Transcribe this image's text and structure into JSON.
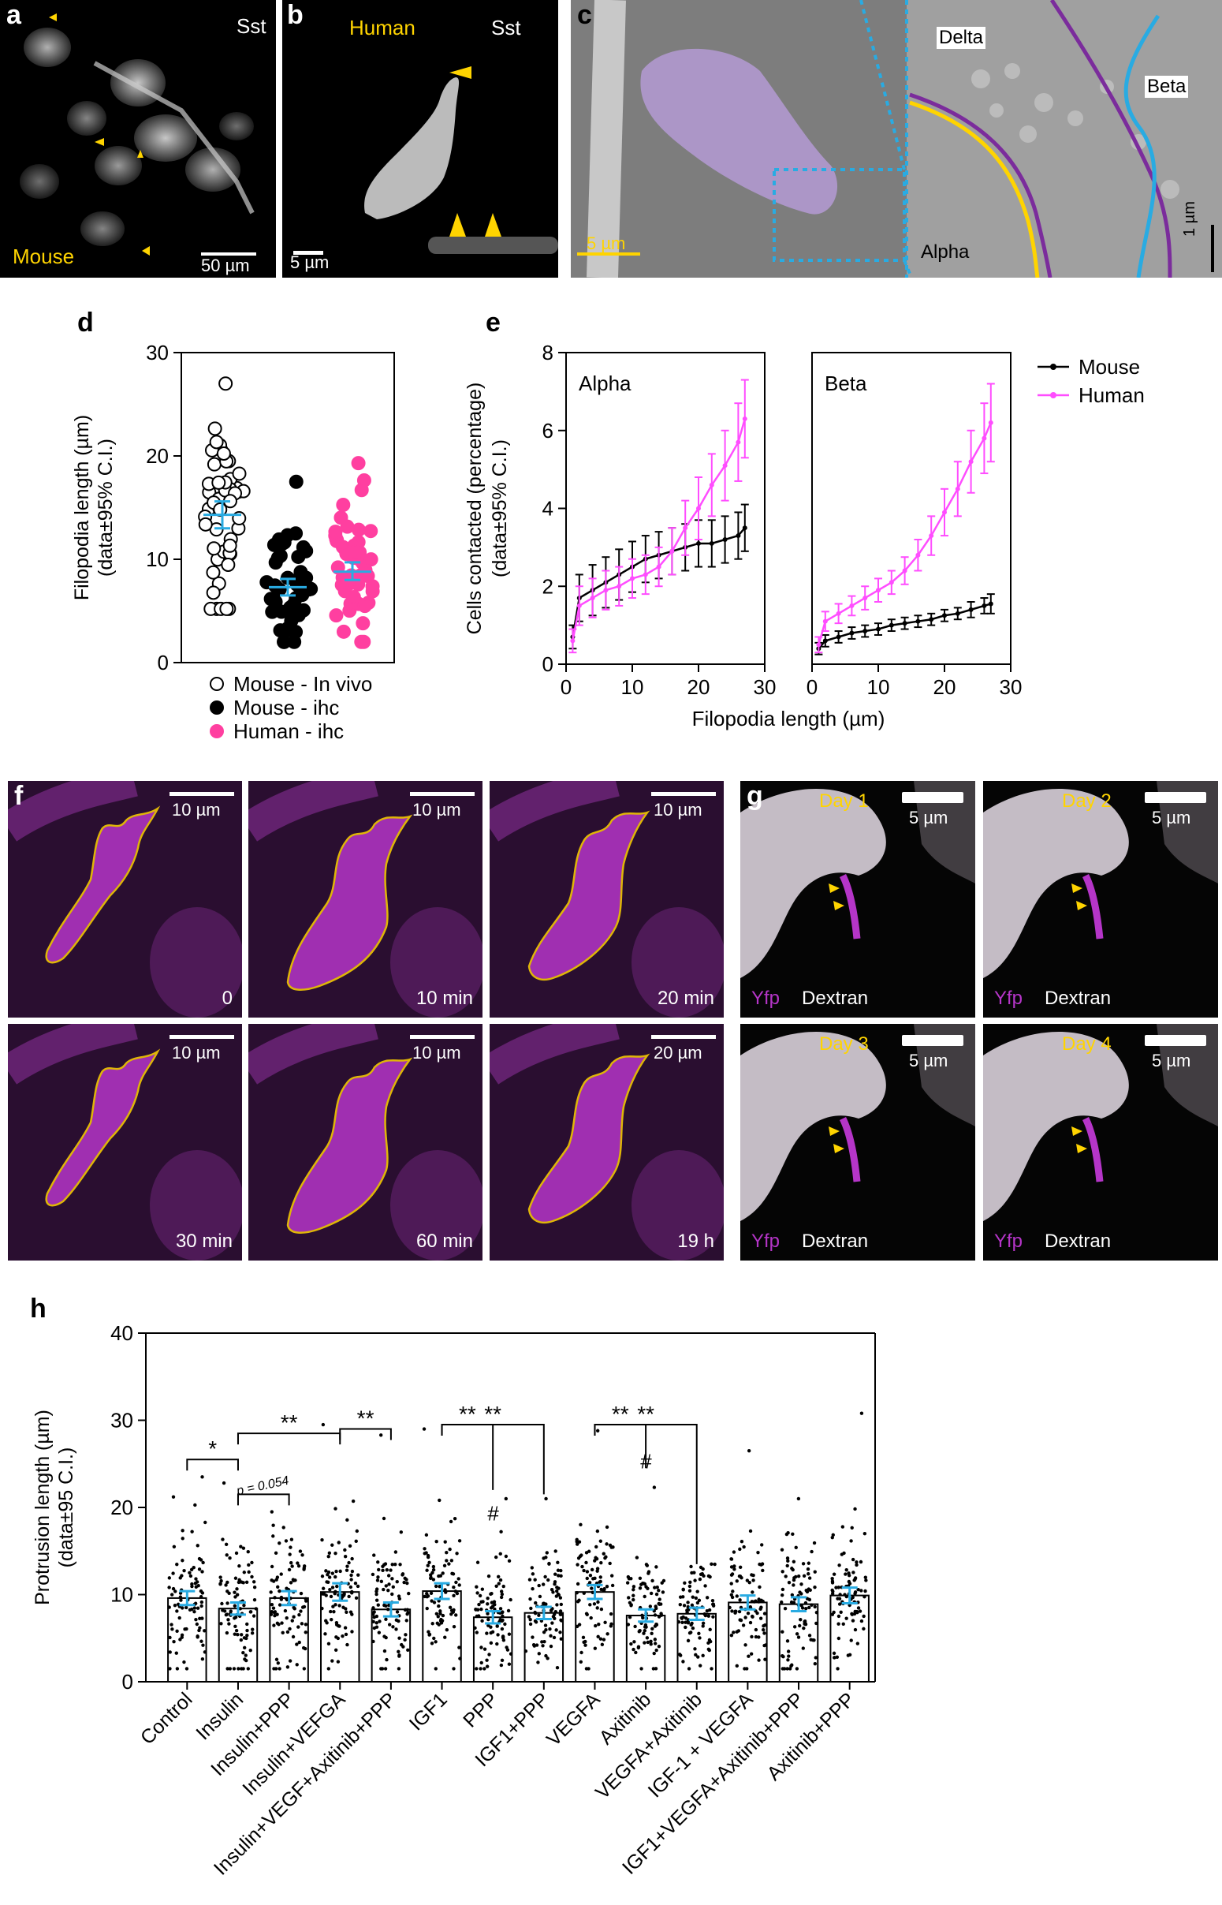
{
  "figure": {
    "panels": {
      "a": {
        "label": "a",
        "marker": "Sst",
        "species": "Mouse",
        "scalebar": "50 µm"
      },
      "b": {
        "label": "b",
        "marker": "Sst",
        "species": "Human",
        "scalebar": "5 µm"
      },
      "c": {
        "label": "c",
        "scalebar_left": "5 µm",
        "scalebar_right": "1 µm",
        "cells": [
          "Delta",
          "Beta",
          "Alpha"
        ]
      },
      "f": {
        "label": "f",
        "frames": [
          {
            "time": "0",
            "scalebar": "10 µm"
          },
          {
            "time": "10 min",
            "scalebar": "10 µm"
          },
          {
            "time": "20 min",
            "scalebar": "10 µm"
          },
          {
            "time": "30 min",
            "scalebar": "10 µm"
          },
          {
            "time": "60 min",
            "scalebar": "10 µm"
          },
          {
            "time": "19 h",
            "scalebar": "20 µm"
          }
        ]
      },
      "g": {
        "label": "g",
        "channel_1": "Yfp",
        "channel_2": "Dextran",
        "frames": [
          {
            "day": "Day 1",
            "scalebar": "5 µm"
          },
          {
            "day": "Day 2",
            "scalebar": "5 µm"
          },
          {
            "day": "Day 3",
            "scalebar": "5 µm"
          },
          {
            "day": "Day 4",
            "scalebar": "5 µm"
          }
        ]
      },
      "d": {
        "label": "d"
      },
      "e": {
        "label": "e"
      },
      "h": {
        "label": "h"
      }
    },
    "colors": {
      "human": "#ff3fa0",
      "human_line": "#ff4dff",
      "mouse": "#000000",
      "ci": "#29abe2",
      "yellow": "#ffd400",
      "magenta": "#b535c8"
    }
  },
  "chart_data": [
    {
      "id": "d",
      "type": "scatter",
      "ylabel_line1": "Filopodia length (µm)",
      "ylabel_line2": "(data±95% C.I.)",
      "ylim": [
        0,
        30
      ],
      "yticks": [
        "0",
        "10",
        "20",
        "30"
      ],
      "groups": [
        {
          "name": "Mouse - In vivo",
          "marker": "open-circle",
          "mean": 14.3,
          "ci": [
            13.0,
            15.6
          ],
          "min": 5.2,
          "max": 27.0
        },
        {
          "name": "Mouse - ihc",
          "marker": "filled-black",
          "mean": 7.3,
          "ci": [
            6.5,
            8.1
          ],
          "min": 2.0,
          "max": 17.5
        },
        {
          "name": "Human - ihc",
          "marker": "filled-pink",
          "mean": 8.8,
          "ci": [
            8.0,
            9.7
          ],
          "min": 2.0,
          "max": 19.3
        }
      ]
    },
    {
      "id": "e",
      "type": "line",
      "ylabel_line1": "Cells contacted (percentage)",
      "ylabel_line2": "(data±95% C.I.)",
      "xlabel": "Filopodia length (µm)",
      "ylim": [
        0,
        8
      ],
      "xlim": [
        0,
        30
      ],
      "yticks": [
        "0",
        "2",
        "4",
        "6",
        "8"
      ],
      "xticks": [
        "0",
        "10",
        "20",
        "30"
      ],
      "legend": [
        "Mouse",
        "Human"
      ],
      "subplots": [
        {
          "title": "Alpha",
          "series": [
            {
              "name": "Mouse",
              "x": [
                1,
                2,
                4,
                6,
                8,
                10,
                12,
                14,
                16,
                18,
                20,
                22,
                24,
                26,
                27
              ],
              "y": [
                0.7,
                1.7,
                1.9,
                2.1,
                2.3,
                2.5,
                2.7,
                2.8,
                2.9,
                3.0,
                3.1,
                3.1,
                3.2,
                3.3,
                3.5
              ],
              "err": [
                0.3,
                0.6,
                0.65,
                0.65,
                0.65,
                0.65,
                0.6,
                0.6,
                0.6,
                0.6,
                0.6,
                0.6,
                0.6,
                0.6,
                0.6
              ]
            },
            {
              "name": "Human",
              "x": [
                1,
                2,
                4,
                6,
                8,
                10,
                12,
                14,
                16,
                18,
                20,
                22,
                24,
                26,
                27
              ],
              "y": [
                0.6,
                1.5,
                1.7,
                1.9,
                2.0,
                2.2,
                2.3,
                2.5,
                2.9,
                3.5,
                4.0,
                4.6,
                5.1,
                5.7,
                6.3
              ],
              "err": [
                0.3,
                0.5,
                0.5,
                0.5,
                0.5,
                0.5,
                0.5,
                0.5,
                0.6,
                0.7,
                0.8,
                0.8,
                0.9,
                1.0,
                1.0
              ]
            }
          ]
        },
        {
          "title": "Beta",
          "series": [
            {
              "name": "Mouse",
              "x": [
                1,
                2,
                4,
                6,
                8,
                10,
                12,
                14,
                16,
                18,
                20,
                22,
                24,
                26,
                27
              ],
              "y": [
                0.4,
                0.6,
                0.7,
                0.8,
                0.85,
                0.9,
                1.0,
                1.05,
                1.1,
                1.15,
                1.25,
                1.3,
                1.4,
                1.5,
                1.55
              ],
              "err": [
                0.15,
                0.15,
                0.15,
                0.15,
                0.15,
                0.15,
                0.15,
                0.15,
                0.15,
                0.15,
                0.15,
                0.15,
                0.2,
                0.2,
                0.25
              ]
            },
            {
              "name": "Human",
              "x": [
                1,
                2,
                4,
                6,
                8,
                10,
                12,
                14,
                16,
                18,
                20,
                22,
                24,
                26,
                27
              ],
              "y": [
                0.5,
                1.1,
                1.3,
                1.5,
                1.7,
                1.9,
                2.1,
                2.4,
                2.8,
                3.3,
                3.9,
                4.5,
                5.2,
                5.8,
                6.2
              ],
              "err": [
                0.2,
                0.25,
                0.25,
                0.25,
                0.3,
                0.3,
                0.3,
                0.35,
                0.4,
                0.5,
                0.6,
                0.7,
                0.8,
                0.9,
                1.0
              ]
            }
          ]
        }
      ]
    },
    {
      "id": "h",
      "type": "bar",
      "ylabel_line1": "Protrusion length (µm)",
      "ylabel_line2": "(data±95 C.I.)",
      "ylim": [
        0,
        40
      ],
      "yticks": [
        "0",
        "10",
        "20",
        "30",
        "40"
      ],
      "categories": [
        "Control",
        "Insulin",
        "Insulin+PPP",
        "Insulin+VEFGA",
        "Insulin+VEGF+Axitinib+PPP",
        "IGF1",
        "PPP",
        "IGF1+PPP",
        "VEGFA",
        "Axitinib",
        "VEGFA+Axitinib",
        "IGF-1 + VEGFA",
        "IGF1+VEGFA+Axitinib+PPP",
        "Axitinib+PPP"
      ],
      "values": [
        9.6,
        8.4,
        9.6,
        10.3,
        8.3,
        10.4,
        7.4,
        7.9,
        10.3,
        7.6,
        7.8,
        9.1,
        8.9,
        9.9
      ],
      "ci": [
        0.8,
        0.7,
        0.8,
        1.0,
        0.8,
        0.9,
        0.7,
        0.7,
        0.8,
        0.7,
        0.7,
        0.8,
        0.8,
        0.9
      ],
      "max_points": [
        23.5,
        22.8,
        19.5,
        29.5,
        28.3,
        29.0,
        21.0,
        21.0,
        28.8,
        22.3,
        13.5,
        26.5,
        21.0,
        30.8
      ],
      "significance": [
        {
          "from": 0,
          "to": 1,
          "text": "*"
        },
        {
          "from": 1,
          "to": 2,
          "text": "p = 0.054"
        },
        {
          "from": 1,
          "to": 3,
          "text": "**"
        },
        {
          "from": 3,
          "to": 4,
          "text": "**"
        },
        {
          "from": 5,
          "to": 6,
          "text": "**"
        },
        {
          "from": 5,
          "to": 7,
          "text": "**"
        },
        {
          "from": 8,
          "to": 9,
          "text": "**"
        },
        {
          "from": 8,
          "to": 10,
          "text": "**"
        }
      ],
      "hash_marks": [
        {
          "index": 6,
          "text": "#"
        },
        {
          "index": 9,
          "text": "#"
        }
      ]
    }
  ]
}
